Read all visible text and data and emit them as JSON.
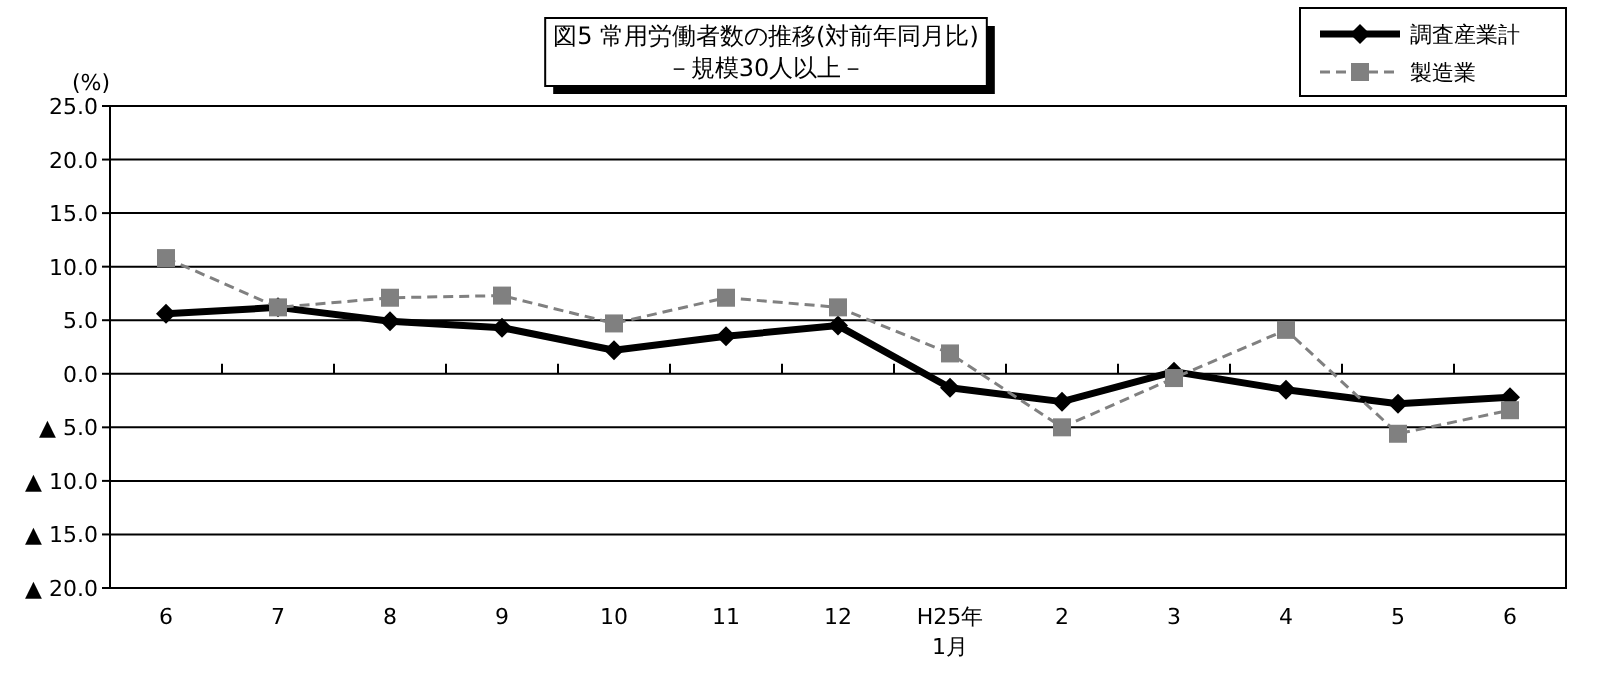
{
  "chart_data": {
    "type": "line",
    "title": "図5  常用労働者数の推移(対前年同月比)",
    "subtitle": "－規模30人以上－",
    "ylabel": "(%)",
    "categories": [
      "6",
      "7",
      "8",
      "9",
      "10",
      "11",
      "12",
      "H25年\n1月",
      "2",
      "3",
      "4",
      "5",
      "6"
    ],
    "series": [
      {
        "name": "調査産業計",
        "color": "#000000",
        "marker": "diamond",
        "line_style": "solid",
        "values": [
          5.6,
          6.2,
          4.9,
          4.3,
          2.2,
          3.5,
          4.5,
          -1.3,
          -2.6,
          0.2,
          -1.5,
          -2.8,
          -2.2
        ]
      },
      {
        "name": "製造業",
        "color": "#808080",
        "marker": "square",
        "line_style": "dashed",
        "values": [
          10.8,
          6.2,
          7.1,
          7.3,
          4.7,
          7.1,
          6.2,
          1.9,
          -5.0,
          -0.4,
          4.1,
          -5.6,
          -3.4
        ]
      }
    ],
    "ylim": [
      -20,
      25
    ],
    "yticks": [
      {
        "value": -20,
        "label": "▲ 20.0"
      },
      {
        "value": -15,
        "label": "▲ 15.0"
      },
      {
        "value": -10,
        "label": "▲ 10.0"
      },
      {
        "value": -5,
        "label": "▲ 5.0"
      },
      {
        "value": 0,
        "label": "0.0"
      },
      {
        "value": 5,
        "label": "5.0"
      },
      {
        "value": 10,
        "label": "10.0"
      },
      {
        "value": 15,
        "label": "15.0"
      },
      {
        "value": 20,
        "label": "20.0"
      },
      {
        "value": 25,
        "label": "25.0"
      }
    ],
    "grid": "y",
    "legend": "top right"
  }
}
